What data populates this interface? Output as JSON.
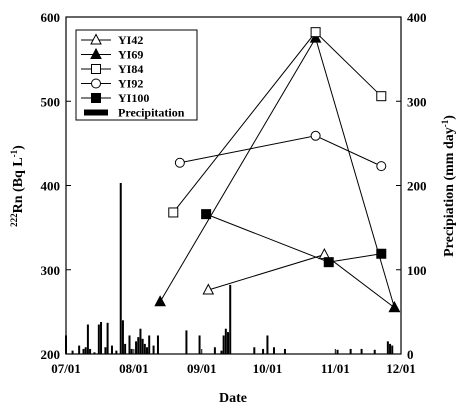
{
  "chart_data": {
    "type": "line",
    "title": "",
    "xlabel": "Date",
    "ylabel_left": {
      "main": "Rn (Bq L",
      "sup1": "222",
      "sup2": "-1",
      "close": ")"
    },
    "ylabel_right": {
      "main": "Precipiation (mm day",
      "sup": "-1",
      "close": ")"
    },
    "x_ticks": [
      "07/01",
      "08/01",
      "09/01",
      "10/01",
      "11/01",
      "12/01"
    ],
    "ylim_left": [
      200,
      600
    ],
    "yticks_left": [
      200,
      300,
      400,
      500,
      600
    ],
    "ylim_right": [
      0,
      400
    ],
    "yticks_right": [
      0,
      100,
      200,
      300,
      400
    ],
    "legend_position": "top-left",
    "series": [
      {
        "name": "YI42",
        "marker": "triangle-open",
        "axis": "left",
        "points": [
          {
            "x": "09/04",
            "y": 276
          },
          {
            "x": "10/27",
            "y": 318
          },
          {
            "x": "11/28",
            "y": 255
          }
        ]
      },
      {
        "name": "YI69",
        "marker": "triangle-filled",
        "axis": "left",
        "points": [
          {
            "x": "08/13",
            "y": 262
          },
          {
            "x": "10/23",
            "y": 575
          },
          {
            "x": "11/28",
            "y": 255
          }
        ]
      },
      {
        "name": "YI84",
        "marker": "square-open",
        "axis": "left",
        "points": [
          {
            "x": "08/19",
            "y": 368
          },
          {
            "x": "10/23",
            "y": 582
          },
          {
            "x": "11/22",
            "y": 506
          }
        ]
      },
      {
        "name": "YI92",
        "marker": "circle-open",
        "axis": "left",
        "points": [
          {
            "x": "08/22",
            "y": 427
          },
          {
            "x": "10/23",
            "y": 459
          },
          {
            "x": "11/22",
            "y": 423
          }
        ]
      },
      {
        "name": "YI100",
        "marker": "square-filled",
        "axis": "left",
        "points": [
          {
            "x": "09/03",
            "y": 366
          },
          {
            "x": "10/29",
            "y": 309
          },
          {
            "x": "11/22",
            "y": 319
          }
        ]
      }
    ],
    "precipitation": {
      "name": "Precipitation",
      "axis": "right",
      "bars": [
        {
          "x": "07/01",
          "y": 22
        },
        {
          "x": "07/04",
          "y": 4
        },
        {
          "x": "07/07",
          "y": 10
        },
        {
          "x": "07/09",
          "y": 6
        },
        {
          "x": "07/10",
          "y": 8
        },
        {
          "x": "07/11",
          "y": 35
        },
        {
          "x": "07/12",
          "y": 6
        },
        {
          "x": "07/14",
          "y": 2
        },
        {
          "x": "07/16",
          "y": 35
        },
        {
          "x": "07/17",
          "y": 38
        },
        {
          "x": "07/19",
          "y": 8
        },
        {
          "x": "07/20",
          "y": 37
        },
        {
          "x": "07/22",
          "y": 10
        },
        {
          "x": "07/24",
          "y": 4
        },
        {
          "x": "07/26",
          "y": 203
        },
        {
          "x": "07/27",
          "y": 40
        },
        {
          "x": "07/28",
          "y": 12
        },
        {
          "x": "07/30",
          "y": 22
        },
        {
          "x": "07/31",
          "y": 6
        },
        {
          "x": "08/02",
          "y": 15
        },
        {
          "x": "08/03",
          "y": 20
        },
        {
          "x": "08/04",
          "y": 30
        },
        {
          "x": "08/05",
          "y": 18
        },
        {
          "x": "08/06",
          "y": 12
        },
        {
          "x": "08/07",
          "y": 8
        },
        {
          "x": "08/08",
          "y": 22
        },
        {
          "x": "08/10",
          "y": 10
        },
        {
          "x": "08/12",
          "y": 22
        },
        {
          "x": "08/25",
          "y": 28
        },
        {
          "x": "08/31",
          "y": 22
        },
        {
          "x": "09/07",
          "y": 8
        },
        {
          "x": "09/10",
          "y": 4
        },
        {
          "x": "09/11",
          "y": 22
        },
        {
          "x": "09/12",
          "y": 30
        },
        {
          "x": "09/13",
          "y": 26
        },
        {
          "x": "09/14",
          "y": 82
        },
        {
          "x": "09/25",
          "y": 8
        },
        {
          "x": "09/29",
          "y": 6
        },
        {
          "x": "10/01",
          "y": 22
        },
        {
          "x": "10/04",
          "y": 8
        },
        {
          "x": "10/09",
          "y": 6
        },
        {
          "x": "11/02",
          "y": 5
        },
        {
          "x": "11/08",
          "y": 6
        },
        {
          "x": "11/13",
          "y": 6
        },
        {
          "x": "11/19",
          "y": 5
        },
        {
          "x": "11/25",
          "y": 15
        },
        {
          "x": "11/26",
          "y": 12
        },
        {
          "x": "11/27",
          "y": 10
        }
      ]
    }
  }
}
